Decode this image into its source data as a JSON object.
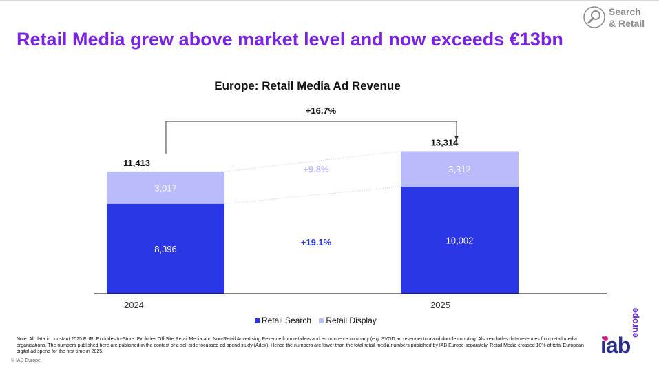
{
  "header": {
    "title": "Retail Media grew above market level and now exceeds €13bn",
    "section_tag": [
      "Search",
      "& Retail"
    ]
  },
  "chart_data": {
    "type": "bar",
    "stacked": true,
    "title": "Europe: Retail Media Ad Revenue",
    "categories": [
      "2024",
      "2025"
    ],
    "series": [
      {
        "name": "Retail Search",
        "values": [
          8396,
          10002
        ],
        "labels": [
          "8,396",
          "10,002"
        ],
        "color": "#2a36e6"
      },
      {
        "name": "Retail Display",
        "values": [
          3017,
          3312
        ],
        "labels": [
          "3,017",
          "3,312"
        ],
        "color": "#b9bbfa"
      }
    ],
    "totals": [
      11413,
      13314
    ],
    "total_labels": [
      "11,413",
      "13,314"
    ],
    "ylim": [
      0,
      14500
    ],
    "growth": {
      "total": "+16.7%",
      "retail_search": "+19.1%",
      "retail_display": "+9.8%"
    },
    "colors": {
      "search_growth": "#2a36e6",
      "display_growth": "#b9bbfa",
      "text_dark": "#111111",
      "axis": "#000000"
    },
    "legend": {
      "position": "bottom"
    },
    "grid": false
  },
  "footer": {
    "note": "Note: All data in constant 2025 EUR. Excludes In-Store. Excludes Off-Site Retail Media and Non-Retail Advertising Revenue from retailers and e-commerce company (e.g. SVOD ad revenue) to avoid double counting. Also excludes data revenues from retail media organisations. The numbers published here are published in the context  of a sell-side focussed ad spend study (Adex). Hence the numbers are lower than the total retail media numbers published by IAB Europe separately. Retail Media crossed 10% of total European digital ad spend for the first time in 2025.",
    "copyright": "© IAB Europe",
    "logo_main": "iab",
    "logo_sub": "europe"
  }
}
